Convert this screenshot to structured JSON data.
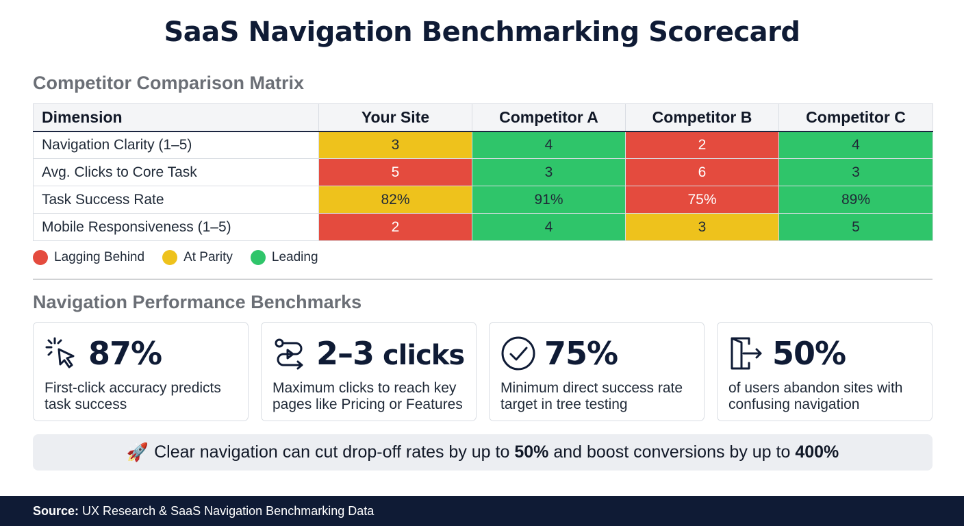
{
  "title": "SaaS Navigation Benchmarking Scorecard",
  "matrix": {
    "heading": "Competitor Comparison Matrix",
    "columns": [
      "Dimension",
      "Your Site",
      "Competitor A",
      "Competitor B",
      "Competitor C"
    ],
    "rows": [
      {
        "label": "Navigation Clarity (1–5)",
        "cells": [
          {
            "value": "3",
            "status": "parity"
          },
          {
            "value": "4",
            "status": "leading"
          },
          {
            "value": "2",
            "status": "lagging"
          },
          {
            "value": "4",
            "status": "leading"
          }
        ]
      },
      {
        "label": "Avg. Clicks to Core Task",
        "cells": [
          {
            "value": "5",
            "status": "lagging"
          },
          {
            "value": "3",
            "status": "leading"
          },
          {
            "value": "6",
            "status": "lagging"
          },
          {
            "value": "3",
            "status": "leading"
          }
        ]
      },
      {
        "label": "Task Success Rate",
        "cells": [
          {
            "value": "82%",
            "status": "parity"
          },
          {
            "value": "91%",
            "status": "leading"
          },
          {
            "value": "75%",
            "status": "lagging"
          },
          {
            "value": "89%",
            "status": "leading"
          }
        ]
      },
      {
        "label": "Mobile Responsiveness (1–5)",
        "cells": [
          {
            "value": "2",
            "status": "lagging"
          },
          {
            "value": "4",
            "status": "leading"
          },
          {
            "value": "3",
            "status": "parity"
          },
          {
            "value": "5",
            "status": "leading"
          }
        ]
      }
    ],
    "legend": [
      {
        "status": "lagging",
        "label": "Lagging Behind",
        "color": "#e44b3e"
      },
      {
        "status": "parity",
        "label": "At Parity",
        "color": "#eec21c"
      },
      {
        "status": "leading",
        "label": "Leading",
        "color": "#2fc56a"
      }
    ]
  },
  "benchmarks": {
    "heading": "Navigation Performance Benchmarks",
    "cards": [
      {
        "icon": "cursor-click-icon",
        "value": "87%",
        "value_suffix": "",
        "description": "First-click accuracy predicts task success"
      },
      {
        "icon": "route-path-icon",
        "value": "2–3",
        "value_suffix": " clicks",
        "description": "Maximum clicks to reach key pages like Pricing or Features"
      },
      {
        "icon": "check-circle-icon",
        "value": "75%",
        "value_suffix": "",
        "description": "Minimum direct success rate target in tree testing"
      },
      {
        "icon": "exit-door-icon",
        "value": "50%",
        "value_suffix": "",
        "description": "of users abandon sites with confusing navigation"
      }
    ]
  },
  "callout": {
    "icon": "🚀",
    "text_1": "Clear navigation can cut drop-off rates by up to ",
    "bold_1": "50%",
    "text_2": " and boost conversions by up to ",
    "bold_2": "400%"
  },
  "footer": {
    "label": "Source:",
    "text": "UX Research & SaaS Navigation Benchmarking Data"
  },
  "colors": {
    "navy": "#0f1b35",
    "lagging": "#e44b3e",
    "parity": "#eec21c",
    "leading": "#2fc56a"
  }
}
